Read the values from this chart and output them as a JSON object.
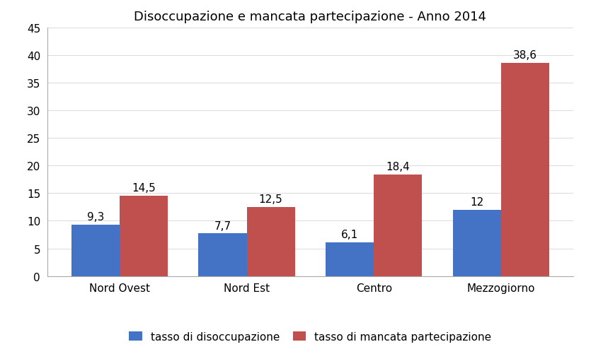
{
  "title": "Disoccupazione e mancata partecipazione - Anno 2014",
  "categories": [
    "Nord Ovest",
    "Nord Est",
    "Centro",
    "Mezzogiorno"
  ],
  "series": [
    {
      "label": "tasso di disoccupazione",
      "values": [
        9.3,
        7.7,
        6.1,
        12.0
      ],
      "color": "#4472C4"
    },
    {
      "label": "tasso di mancata partecipazione",
      "values": [
        14.5,
        12.5,
        18.4,
        38.6
      ],
      "color": "#C0504D"
    }
  ],
  "ylim": [
    0,
    45
  ],
  "yticks": [
    0,
    5,
    10,
    15,
    20,
    25,
    30,
    35,
    40,
    45
  ],
  "bar_width": 0.38,
  "value_labels": [
    [
      "9,3",
      "7,7",
      "6,1",
      "12"
    ],
    [
      "14,5",
      "12,5",
      "18,4",
      "38,6"
    ]
  ],
  "background_color": "#ffffff",
  "plot_bg_color": "#f2f2f2",
  "title_fontsize": 13,
  "tick_fontsize": 11,
  "label_fontsize": 11,
  "legend_fontsize": 11
}
